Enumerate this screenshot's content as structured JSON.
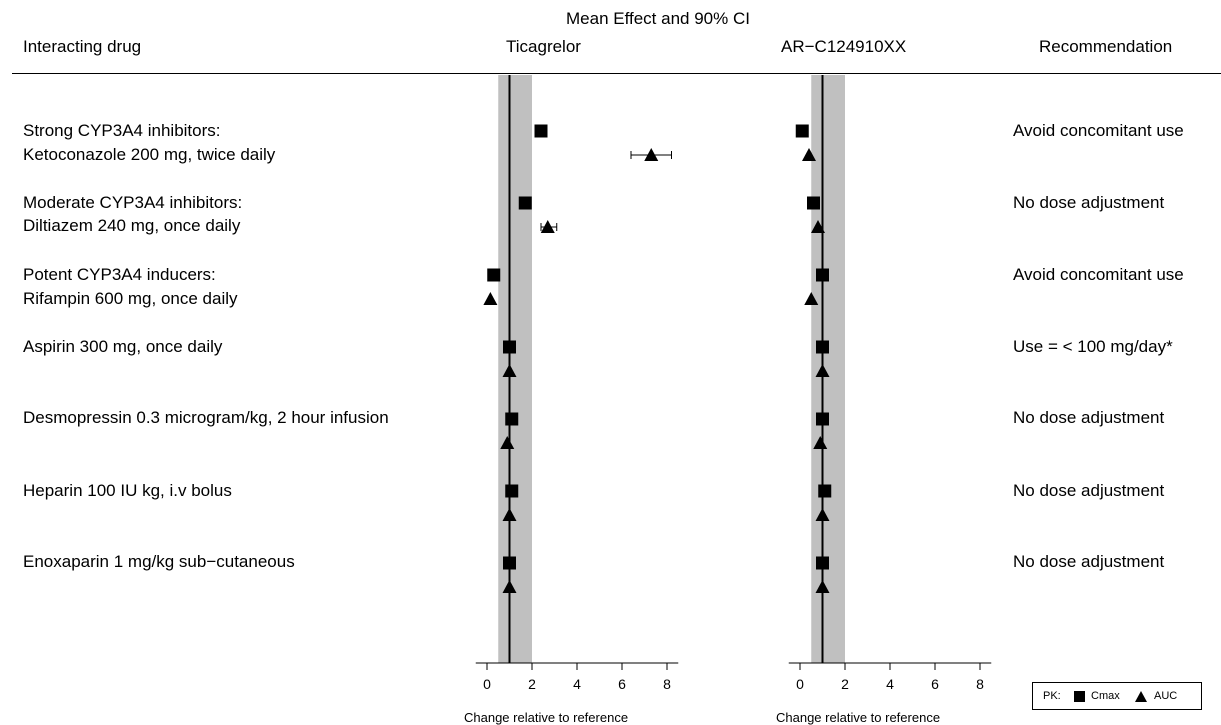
{
  "header": {
    "interacting_drug": "Interacting drug",
    "mean_effect": "Mean Effect and 90% CI",
    "panel_left": "Ticagrelor",
    "panel_right": "AR−C124910XX",
    "recommendation": "Recommendation"
  },
  "rows": [
    {
      "lines": [
        "Strong CYP3A4 inhibitors:",
        "Ketoconazole 200 mg, twice daily"
      ],
      "recommendation": "Avoid concomitant use"
    },
    {
      "lines": [
        "Moderate CYP3A4 inhibitors:",
        "Diltiazem 240 mg, once daily"
      ],
      "recommendation": "No dose adjustment"
    },
    {
      "lines": [
        "Potent CYP3A4 inducers:",
        "Rifampin 600 mg, once daily"
      ],
      "recommendation": "Avoid concomitant use"
    },
    {
      "lines": [
        "Aspirin 300 mg, once daily"
      ],
      "recommendation": "Use = <  100 mg/day*"
    },
    {
      "lines": [
        "Desmopressin 0.3 microgram/kg, 2 hour infusion"
      ],
      "recommendation": "No dose adjustment"
    },
    {
      "lines": [
        "Heparin 100 IU kg, i.v bolus"
      ],
      "recommendation": "No dose adjustment"
    },
    {
      "lines": [
        "Enoxaparin 1 mg/kg sub−cutaneous"
      ],
      "recommendation": "No dose adjustment"
    }
  ],
  "axis": {
    "xlabel": "Change relative to reference",
    "xlim": [
      -0.5,
      8.5
    ],
    "ticks": [
      0,
      2,
      4,
      6,
      8
    ],
    "tick_labels": [
      "0",
      "2",
      "4",
      "6",
      "8"
    ],
    "reference_line": 1,
    "shaded_band": [
      0.5,
      2
    ]
  },
  "legend": {
    "prefix": "PK:",
    "cmax": "Cmax",
    "auc": "AUC"
  },
  "colors": {
    "band": "#c0c0c0",
    "marker": "#000000"
  },
  "chart_data": {
    "type": "scatter",
    "title": "Mean Effect and 90% CI",
    "xlabel": "Change relative to reference",
    "xlim": [
      -0.5,
      8.5
    ],
    "grid": false,
    "legend_position": "bottom-right",
    "categories": [
      "Ketoconazole 200 mg, twice daily",
      "Diltiazem 240 mg, once daily",
      "Rifampin 600 mg, once daily",
      "Aspirin 300 mg, once daily",
      "Desmopressin 0.3 microgram/kg, 2 hour infusion",
      "Heparin 100 IU kg, i.v bolus",
      "Enoxaparin 1 mg/kg sub−cutaneous"
    ],
    "panels": [
      {
        "name": "Ticagrelor",
        "series": [
          {
            "name": "Cmax",
            "marker": "square",
            "values": [
              2.4,
              1.7,
              0.3,
              1.0,
              1.1,
              1.1,
              1.0
            ]
          },
          {
            "name": "AUC",
            "marker": "triangle",
            "values": [
              7.3,
              2.7,
              0.15,
              1.0,
              0.9,
              1.0,
              1.0
            ],
            "ci": [
              [
                6.4,
                8.2
              ],
              [
                2.4,
                3.1
              ],
              null,
              null,
              null,
              null,
              null
            ]
          }
        ]
      },
      {
        "name": "AR−C124910XX",
        "series": [
          {
            "name": "Cmax",
            "marker": "square",
            "values": [
              0.1,
              0.6,
              1.0,
              1.0,
              1.0,
              1.1,
              1.0
            ]
          },
          {
            "name": "AUC",
            "marker": "triangle",
            "values": [
              0.4,
              0.8,
              0.5,
              1.0,
              0.9,
              1.0,
              1.0
            ]
          }
        ]
      }
    ]
  }
}
